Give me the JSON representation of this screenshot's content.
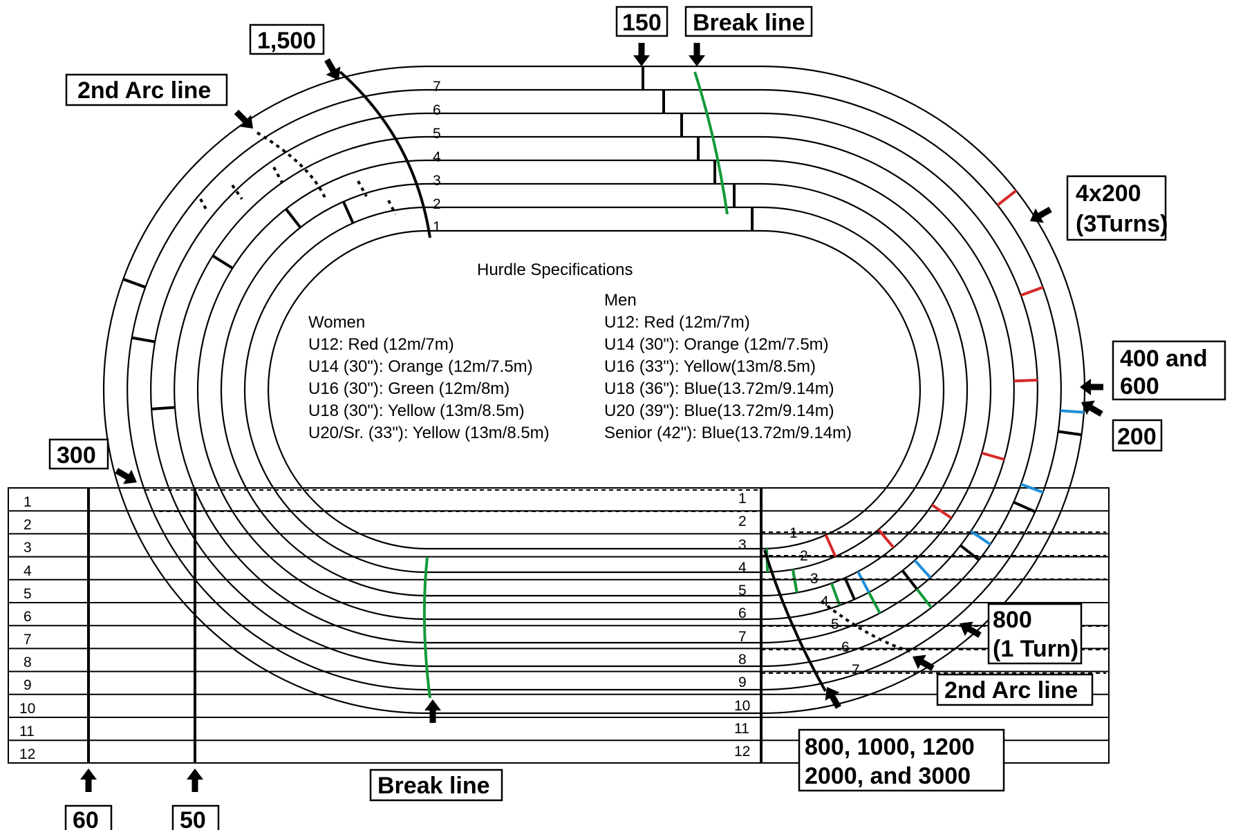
{
  "hurdle_specs": {
    "title": "Hurdle Specifications",
    "women": {
      "heading": "Women",
      "lines": [
        "U12: Red (12m/7m)",
        "U14 (30\"): Orange (12m/7.5m)",
        "U16 (30\"): Green (12m/8m)",
        "U18 (30\"): Yellow (13m/8.5m)",
        "U20/Sr. (33\"): Yellow (13m/8.5m)"
      ]
    },
    "men": {
      "heading": "Men",
      "lines": [
        "U12: Red (12m/7m)",
        "U14 (30\"): Orange (12m/7.5m)",
        "U16 (33\"): Yellow(13m/8.5m)",
        "U18 (36\"): Blue(13.72m/9.14m)",
        "U20 (39\"): Blue(13.72m/9.14m)",
        "Senior (42\"): Blue(13.72m/9.14m)"
      ]
    }
  },
  "callouts": {
    "c150": "150",
    "break_top": "Break line",
    "c1500": "1,500",
    "arc2_top": "2nd Arc line",
    "c4x200_a": "4x200",
    "c4x200_b": "(3Turns)",
    "c400_a": "400 and",
    "c400_b": "600",
    "c200": "200",
    "c300": "300",
    "c800_a": "800",
    "c800_b": "(1 Turn)",
    "arc2_bottom": "2nd Arc line",
    "dist_a": "800, 1000, 1200",
    "dist_b": "2000, and 3000",
    "break_bottom": "Break line",
    "c60": "60",
    "c50": "50"
  },
  "oval_lane_numbers": [
    "1",
    "2",
    "3",
    "4",
    "5",
    "6",
    "7"
  ],
  "straight_left_lanes": [
    "1",
    "2",
    "3",
    "4",
    "5",
    "6",
    "7",
    "8",
    "9",
    "10",
    "11",
    "12"
  ],
  "straight_right_lanes": [
    "1",
    "2",
    "3",
    "4",
    "5",
    "6",
    "7",
    "8",
    "9",
    "10",
    "11",
    "12"
  ],
  "curve_lane_numbers": [
    "1",
    "2",
    "3",
    "4",
    "5",
    "6",
    "7"
  ],
  "colors": {
    "red": "#d62828",
    "blue": "#1e8fd8",
    "green": "#139a3a",
    "black": "#000000"
  }
}
